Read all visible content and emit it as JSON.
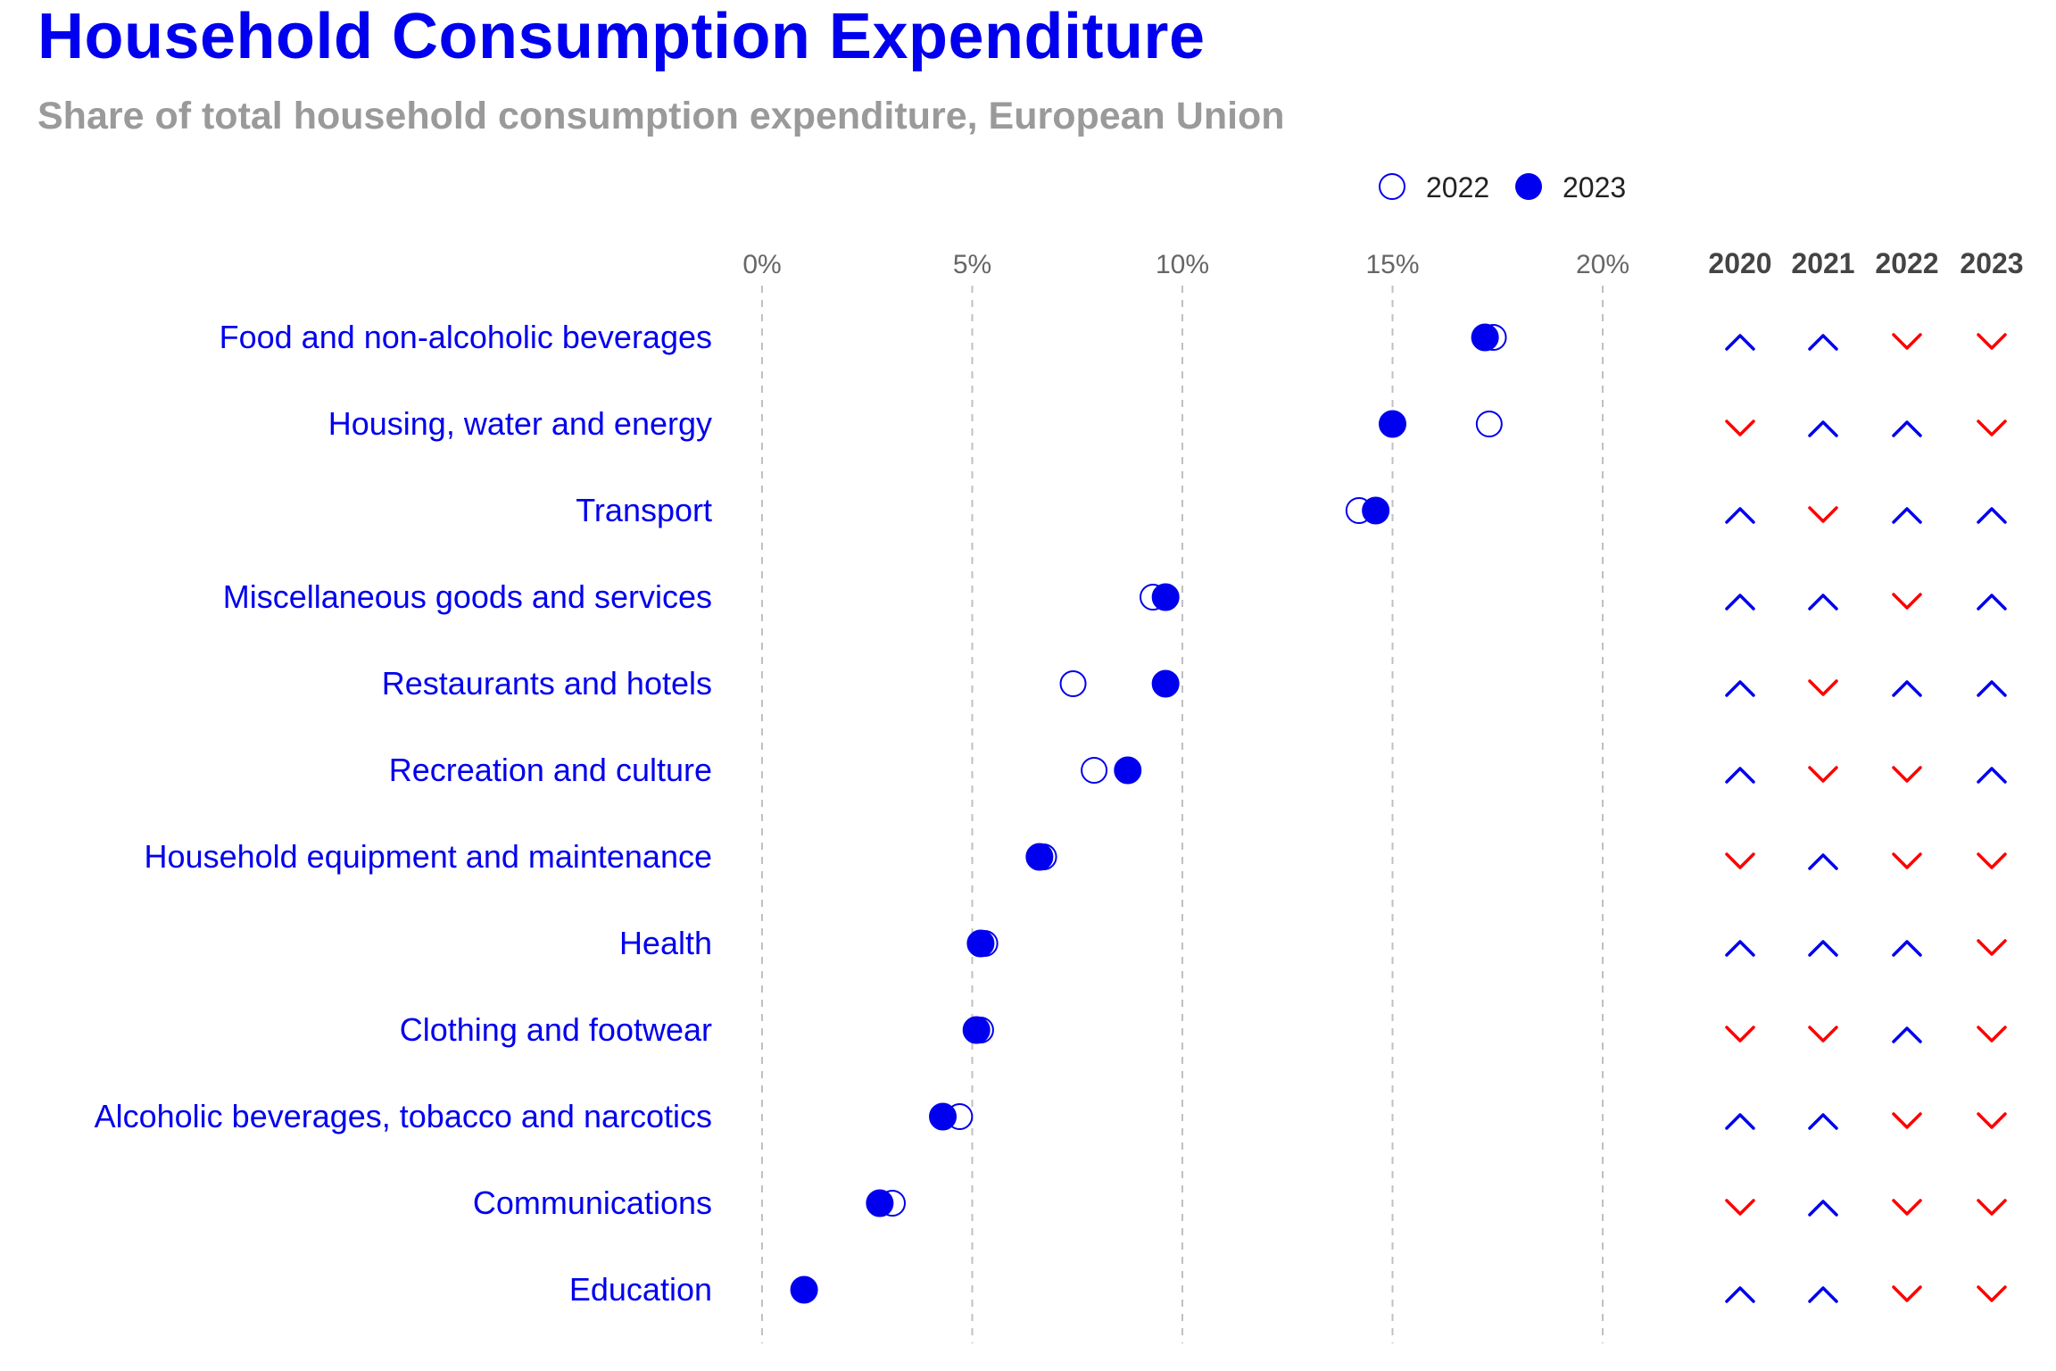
{
  "title": "Household Consumption Expenditure",
  "subtitle": "Share of total household consumption expenditure, European Union",
  "colors": {
    "accent": "#0000ee",
    "up": "#0000ee",
    "down": "#ff0000",
    "grid": "#c0c0c0",
    "tick": "#666666"
  },
  "chart_data": {
    "type": "scatter",
    "title": "Household Consumption Expenditure",
    "subtitle": "Share of total household consumption expenditure, European Union",
    "xlabel": "",
    "ylabel": "",
    "xlim": [
      0,
      20
    ],
    "x_ticks": [
      0,
      5,
      10,
      15,
      20
    ],
    "x_tick_labels": [
      "0%",
      "5%",
      "10%",
      "15%",
      "20%"
    ],
    "grid": "vertical dashed",
    "legend": {
      "position": "top-right",
      "entries": [
        {
          "name": "2022",
          "marker": "hollow-circle"
        },
        {
          "name": "2023",
          "marker": "filled-circle"
        }
      ]
    },
    "categories": [
      "Food and non-alcoholic beverages",
      "Housing, water and energy",
      "Transport",
      "Miscellaneous goods and services",
      "Restaurants and hotels",
      "Recreation and culture",
      "Household equipment and maintenance",
      "Health",
      "Clothing and footwear",
      "Alcoholic beverages, tobacco and narcotics",
      "Communications",
      "Education"
    ],
    "series": [
      {
        "name": "2022",
        "values": [
          17.4,
          17.3,
          14.2,
          9.3,
          7.4,
          7.9,
          6.7,
          5.3,
          5.2,
          4.7,
          3.1,
          1.0
        ]
      },
      {
        "name": "2023",
        "values": [
          17.2,
          15.0,
          14.6,
          9.6,
          9.6,
          8.7,
          6.6,
          5.2,
          5.1,
          4.3,
          2.8,
          1.0
        ]
      }
    ],
    "trend_years": [
      "2020",
      "2021",
      "2022",
      "2023"
    ],
    "trends": [
      [
        "up",
        "up",
        "down",
        "down"
      ],
      [
        "down",
        "up",
        "up",
        "down"
      ],
      [
        "up",
        "down",
        "up",
        "up"
      ],
      [
        "up",
        "up",
        "down",
        "up"
      ],
      [
        "up",
        "down",
        "up",
        "up"
      ],
      [
        "up",
        "down",
        "down",
        "up"
      ],
      [
        "down",
        "up",
        "down",
        "down"
      ],
      [
        "up",
        "up",
        "up",
        "down"
      ],
      [
        "down",
        "down",
        "up",
        "down"
      ],
      [
        "up",
        "up",
        "down",
        "down"
      ],
      [
        "down",
        "up",
        "down",
        "down"
      ],
      [
        "up",
        "up",
        "down",
        "down"
      ]
    ]
  }
}
